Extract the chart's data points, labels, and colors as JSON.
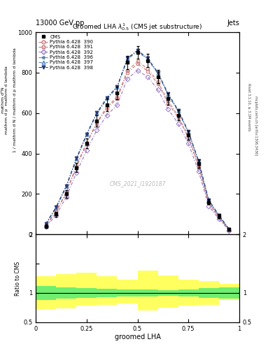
{
  "title": "13000 GeV pp",
  "title_right": "Jets",
  "plot_title": "Groomed LHA $\\lambda^{1}_{0.5}$ (CMS jet substructure)",
  "xlabel": "groomed LHA",
  "watermark": "CMS_2021_I1920187",
  "right_label1": "Rivet 3.1.10, ≥ 3.1M events",
  "right_label2": "mcplots.cern.ch [arXiv:1306.3436]",
  "x": [
    0.05,
    0.1,
    0.15,
    0.2,
    0.25,
    0.3,
    0.35,
    0.4,
    0.45,
    0.5,
    0.55,
    0.6,
    0.65,
    0.7,
    0.75,
    0.8,
    0.85,
    0.9,
    0.95
  ],
  "cms_data": [
    40,
    100,
    200,
    330,
    450,
    560,
    640,
    700,
    850,
    900,
    860,
    780,
    670,
    590,
    490,
    350,
    160,
    90,
    25
  ],
  "cms_err": [
    8,
    12,
    18,
    22,
    25,
    28,
    30,
    32,
    32,
    32,
    32,
    32,
    28,
    26,
    22,
    20,
    12,
    10,
    6
  ],
  "pythia390": [
    45,
    115,
    210,
    340,
    455,
    555,
    630,
    680,
    810,
    855,
    820,
    755,
    660,
    585,
    485,
    340,
    155,
    85,
    22
  ],
  "pythia391": [
    43,
    110,
    205,
    333,
    448,
    548,
    623,
    672,
    800,
    843,
    808,
    745,
    650,
    578,
    478,
    334,
    152,
    83,
    21
  ],
  "pythia392": [
    38,
    95,
    185,
    305,
    415,
    515,
    590,
    640,
    770,
    810,
    780,
    715,
    620,
    548,
    450,
    312,
    140,
    76,
    19
  ],
  "pythia396": [
    50,
    130,
    235,
    370,
    490,
    595,
    670,
    725,
    865,
    905,
    865,
    795,
    690,
    608,
    503,
    358,
    165,
    91,
    24
  ],
  "pythia397": [
    52,
    133,
    238,
    374,
    494,
    599,
    674,
    729,
    869,
    909,
    869,
    799,
    694,
    612,
    507,
    362,
    168,
    93,
    25
  ],
  "pythia398": [
    53,
    135,
    240,
    376,
    496,
    601,
    676,
    731,
    871,
    911,
    871,
    801,
    696,
    614,
    509,
    364,
    170,
    95,
    26
  ],
  "ylim": [
    0,
    1000
  ],
  "yticks": [
    0,
    200,
    400,
    600,
    800,
    1000
  ],
  "ratio_ylim": [
    0.5,
    2.0
  ],
  "ratio_yticks": [
    0.5,
    1.0,
    1.5,
    2.0
  ],
  "x_bins": [
    0.0,
    0.1,
    0.2,
    0.3,
    0.4,
    0.5,
    0.6,
    0.7,
    0.8,
    0.9,
    1.0
  ],
  "green_band_lo": [
    0.88,
    0.9,
    0.92,
    0.93,
    0.94,
    0.94,
    0.95,
    0.94,
    0.92,
    0.9
  ],
  "green_band_hi": [
    1.12,
    1.1,
    1.08,
    1.07,
    1.06,
    1.06,
    1.05,
    1.06,
    1.08,
    1.1
  ],
  "yellow_band_lo": [
    0.72,
    0.74,
    0.78,
    0.8,
    0.82,
    0.7,
    0.75,
    0.78,
    0.8,
    0.88
  ],
  "yellow_band_hi": [
    1.28,
    1.32,
    1.35,
    1.28,
    1.22,
    1.38,
    1.3,
    1.22,
    1.2,
    1.15
  ],
  "color390": "#c87878",
  "color391": "#c87878",
  "color392": "#9878c8",
  "color396": "#5888a8",
  "color397": "#5888c0",
  "color398": "#283878",
  "background": "#ffffff"
}
